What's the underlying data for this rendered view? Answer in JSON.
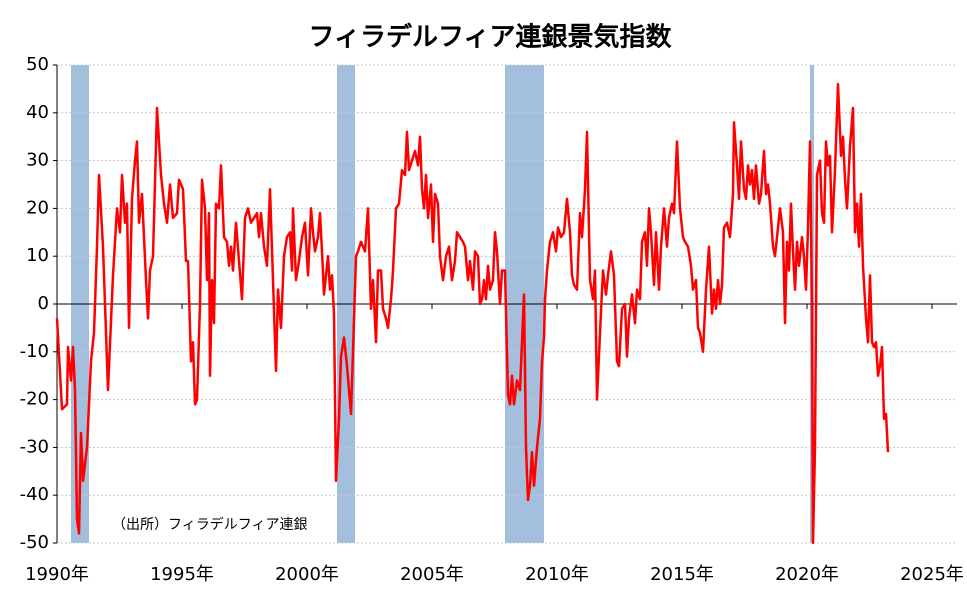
{
  "chart_data": {
    "type": "line",
    "title": "フィラデルフィア連銀景気指数",
    "annotation": "（出所）フィラデルフィア連銀",
    "color": "#ff0000",
    "shade_color": "#a4bedd",
    "shaded_periods": [
      [
        1990.56,
        1991.28
      ],
      [
        2001.2,
        2001.92
      ],
      [
        2007.92,
        2009.48
      ],
      [
        2020.12,
        2020.28
      ]
    ],
    "xlim": [
      1990,
      2026
    ],
    "xticks": [
      {
        "value": 1990,
        "label": "1990年"
      },
      {
        "value": 1995,
        "label": "1995年"
      },
      {
        "value": 2000,
        "label": "2000年"
      },
      {
        "value": 2005,
        "label": "2005年"
      },
      {
        "value": 2010,
        "label": "2010年"
      },
      {
        "value": 2015,
        "label": "2015年"
      },
      {
        "value": 2020,
        "label": "2020年"
      },
      {
        "value": 2025,
        "label": "2025年"
      }
    ],
    "ylim": [
      -50,
      50
    ],
    "yticks": [
      -50,
      -40,
      -30,
      -20,
      -10,
      0,
      10,
      20,
      30,
      40,
      50
    ],
    "grid": true,
    "x": [
      1990.0,
      1990.2,
      1990.4,
      1990.44,
      1990.56,
      1990.64,
      1990.72,
      1990.8,
      1990.88,
      1990.96,
      1991.04,
      1991.2,
      1991.36,
      1991.48,
      1991.6,
      1991.68,
      1991.84,
      1992.04,
      1992.24,
      1992.4,
      1992.52,
      1992.6,
      1992.72,
      1992.8,
      1992.88,
      1993.0,
      1993.12,
      1993.2,
      1993.28,
      1993.4,
      1993.56,
      1993.64,
      1993.72,
      1993.84,
      1994.0,
      1994.16,
      1994.28,
      1994.4,
      1994.52,
      1994.64,
      1994.8,
      1994.88,
      1995.04,
      1995.16,
      1995.24,
      1995.36,
      1995.44,
      1995.52,
      1995.6,
      1995.72,
      1995.8,
      1995.92,
      1996.0,
      1996.08,
      1996.12,
      1996.2,
      1996.28,
      1996.36,
      1996.48,
      1996.56,
      1996.68,
      1996.8,
      1996.88,
      1996.96,
      1997.04,
      1997.16,
      1997.28,
      1997.4,
      1997.52,
      1997.64,
      1997.76,
      1997.88,
      1998.0,
      1998.08,
      1998.16,
      1998.28,
      1998.4,
      1998.52,
      1998.76,
      1998.84,
      1998.96,
      1999.08,
      1999.2,
      1999.32,
      1999.4,
      1999.44,
      1999.56,
      1999.68,
      1999.8,
      1999.92,
      2000.04,
      2000.16,
      2000.24,
      2000.32,
      2000.44,
      2000.52,
      2000.6,
      2000.68,
      2000.76,
      2000.84,
      2000.92,
      2001.0,
      2001.08,
      2001.16,
      2001.28,
      2001.36,
      2001.48,
      2001.6,
      2001.68,
      2001.76,
      2001.84,
      2001.96,
      2002.04,
      2002.16,
      2002.24,
      2002.32,
      2002.44,
      2002.56,
      2002.64,
      2002.76,
      2002.84,
      2002.96,
      2003.04,
      2003.16,
      2003.24,
      2003.36,
      2003.44,
      2003.56,
      2003.68,
      2003.8,
      2003.92,
      2004.0,
      2004.08,
      2004.2,
      2004.32,
      2004.44,
      2004.52,
      2004.6,
      2004.68,
      2004.76,
      2004.84,
      2004.96,
      2005.04,
      2005.12,
      2005.24,
      2005.32,
      2005.44,
      2005.56,
      2005.68,
      2005.8,
      2005.92,
      2006.0,
      2006.12,
      2006.24,
      2006.32,
      2006.44,
      2006.52,
      2006.64,
      2006.72,
      2006.84,
      2006.92,
      2007.0,
      2007.08,
      2007.16,
      2007.24,
      2007.32,
      2007.44,
      2007.52,
      2007.6,
      2007.72,
      2007.8,
      2007.92,
      2008.04,
      2008.12,
      2008.2,
      2008.28,
      2008.4,
      2008.52,
      2008.68,
      2008.76,
      2008.84,
      2008.92,
      2009.0,
      2009.08,
      2009.2,
      2009.32,
      2009.4,
      2009.48,
      2009.52,
      2009.6,
      2009.72,
      2009.84,
      2009.96,
      2010.04,
      2010.16,
      2010.28,
      2010.4,
      2010.52,
      2010.6,
      2010.68,
      2010.8,
      2010.92,
      2011.0,
      2011.12,
      2011.2,
      2011.32,
      2011.44,
      2011.52,
      2011.6,
      2011.72,
      2011.84,
      2011.96,
      2012.04,
      2012.16,
      2012.28,
      2012.4,
      2012.48,
      2012.6,
      2012.72,
      2012.8,
      2012.88,
      2013.0,
      2013.12,
      2013.2,
      2013.32,
      2013.4,
      2013.52,
      2013.6,
      2013.68,
      2013.76,
      2013.88,
      2013.96,
      2014.08,
      2014.16,
      2014.28,
      2014.4,
      2014.48,
      2014.6,
      2014.68,
      2014.8,
      2014.92,
      2015.04,
      2015.12,
      2015.24,
      2015.36,
      2015.44,
      2015.56,
      2015.64,
      2015.72,
      2015.84,
      2015.96,
      2016.08,
      2016.2,
      2016.28,
      2016.36,
      2016.44,
      2016.52,
      2016.6,
      2016.68,
      2016.8,
      2016.92,
      2017.04,
      2017.08,
      2017.2,
      2017.28,
      2017.36,
      2017.48,
      2017.56,
      2017.64,
      2017.72,
      2017.8,
      2017.88,
      2017.96,
      2018.08,
      2018.16,
      2018.28,
      2018.36,
      2018.44,
      2018.52,
      2018.64,
      2018.72,
      2018.84,
      2018.92,
      2019.04,
      2019.12,
      2019.2,
      2019.28,
      2019.36,
      2019.44,
      2019.52,
      2019.6,
      2019.68,
      2019.8,
      2019.88,
      2019.96,
      2020.04,
      2020.12,
      2020.2,
      2020.24,
      2020.32,
      2020.4,
      2020.52,
      2020.6,
      2020.68,
      2020.76,
      2020.84,
      2020.92,
      2021.0,
      2021.12,
      2021.24,
      2021.36,
      2021.44,
      2021.52,
      2021.6,
      2021.72,
      2021.84,
      2021.92,
      2022.0,
      2022.08,
      2022.16,
      2022.24,
      2022.36,
      2022.44,
      2022.52,
      2022.6,
      2022.68,
      2022.76,
      2022.84,
      2022.92,
      2023.0,
      2023.08,
      2023.16,
      2023.24
    ],
    "values": [
      -3,
      -22,
      -21,
      -9,
      -16,
      -9,
      -18,
      -45,
      -48,
      -27,
      -37,
      -30,
      -12,
      -6,
      12,
      27,
      12,
      -18,
      6,
      20,
      15,
      27,
      17,
      21,
      -5,
      22,
      30,
      34,
      17,
      23,
      5,
      -3,
      7,
      10,
      41,
      27,
      21,
      17,
      25,
      18,
      19,
      26,
      24,
      9,
      9,
      -12,
      -8,
      -21,
      -20,
      0,
      26,
      20,
      5,
      19,
      -15,
      5,
      -4,
      21,
      20,
      29,
      14,
      13,
      8,
      12,
      7,
      17,
      9,
      1,
      18,
      20,
      17,
      18,
      19,
      14,
      19,
      12,
      8,
      24,
      -14,
      3,
      -5,
      10,
      14,
      15,
      7,
      20,
      5,
      9,
      14,
      17,
      6,
      20,
      15,
      11,
      14,
      19,
      11,
      2,
      6,
      10,
      3,
      6,
      -2,
      -37,
      -24,
      -11,
      -7,
      -13,
      -18,
      -23,
      -10,
      10,
      11,
      13,
      12,
      11,
      20,
      -1,
      5,
      -8,
      7,
      7,
      -1,
      -3,
      -5,
      1,
      7,
      20,
      21,
      28,
      27,
      36,
      28,
      30,
      32,
      29,
      35,
      24,
      20,
      27,
      18,
      25,
      13,
      23,
      21,
      10,
      5,
      10,
      12,
      5,
      9,
      15,
      14,
      13,
      12,
      5,
      9,
      3,
      11,
      10,
      0,
      1,
      5,
      1,
      8,
      3,
      5,
      15,
      11,
      0,
      7,
      7,
      -19,
      -21,
      -15,
      -21,
      -16,
      -18,
      2,
      -30,
      -41,
      -38,
      -31,
      -38,
      -30,
      -24,
      -12,
      -7,
      1,
      7,
      13,
      15,
      11,
      16,
      14,
      15,
      22,
      15,
      6,
      4,
      3,
      19,
      14,
      24,
      36,
      5,
      1,
      7,
      -20,
      -6,
      7,
      2,
      6,
      11,
      6,
      -12,
      -13,
      -1,
      0,
      -11,
      -3,
      2,
      -4,
      3,
      1,
      13,
      15,
      8,
      20,
      15,
      4,
      15,
      3,
      12,
      20,
      12,
      18,
      21,
      19,
      34,
      20,
      14,
      13,
      12,
      8,
      3,
      5,
      -5,
      -6,
      -10,
      3,
      12,
      -2,
      3,
      -1,
      5,
      0,
      4,
      16,
      17,
      14,
      23,
      38,
      29,
      22,
      34,
      24,
      22,
      29,
      25,
      28,
      22,
      29,
      21,
      23,
      32,
      23,
      25,
      21,
      12,
      10,
      16,
      20,
      15,
      -4,
      13,
      7,
      21,
      11,
      3,
      13,
      8,
      14,
      10,
      3,
      16,
      34,
      0,
      -50,
      -30,
      27,
      30,
      19,
      17,
      34,
      29,
      31,
      15,
      28,
      46,
      31,
      35,
      26,
      20,
      33,
      41,
      15,
      21,
      12,
      23,
      8,
      -3,
      -8,
      6,
      -8,
      -9,
      -8,
      -15,
      -13,
      -9,
      -24,
      -23,
      -31
    ]
  }
}
